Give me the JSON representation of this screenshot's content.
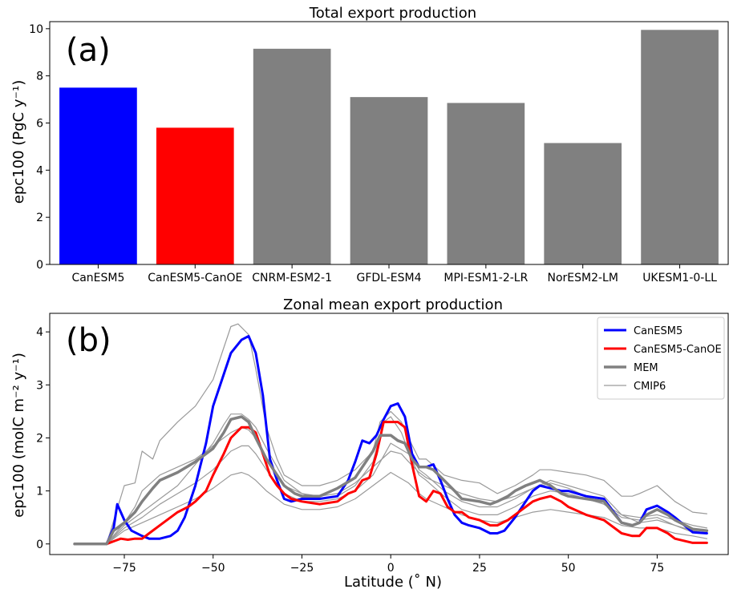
{
  "chart_data": [
    {
      "panel": "(a)",
      "type": "bar",
      "title": "Total export production",
      "ylabel": "epc100 (PgC y⁻¹)",
      "ylim": [
        0,
        10.3
      ],
      "yticks": [
        0,
        2,
        4,
        6,
        8,
        10
      ],
      "categories": [
        "CanESM5",
        "CanESM5-CanOE",
        "CNRM-ESM2-1",
        "GFDL-ESM4",
        "MPI-ESM1-2-LR",
        "NorESM2-LM",
        "UKESM1-0-LL"
      ],
      "values": [
        7.5,
        5.8,
        9.15,
        7.1,
        6.85,
        5.15,
        9.95
      ],
      "colors": [
        "#0000ff",
        "#ff0000",
        "#808080",
        "#808080",
        "#808080",
        "#808080",
        "#808080"
      ]
    },
    {
      "panel": "(b)",
      "type": "line",
      "title": "Zonal mean export production",
      "xlabel": "Latitude (˚ N)",
      "ylabel": "epc100 (molC m⁻² y⁻¹)",
      "xlim": [
        -96,
        95
      ],
      "ylim": [
        -0.2,
        4.35
      ],
      "xticks": [
        -75,
        -50,
        -25,
        0,
        25,
        50,
        75
      ],
      "xticklabels": [
        "−75",
        "−50",
        "−25",
        "0",
        "25",
        "50",
        "75"
      ],
      "yticks": [
        0,
        1,
        2,
        3,
        4
      ],
      "legend_position": "top-right",
      "series": [
        {
          "name": "CanESM5",
          "color": "#0000ff",
          "width": 3,
          "x": [
            -89,
            -85,
            -80,
            -78,
            -77,
            -75,
            -73,
            -70,
            -68,
            -65,
            -62,
            -60,
            -58,
            -55,
            -52,
            -50,
            -47,
            -45,
            -42,
            -40,
            -38,
            -36,
            -34,
            -32,
            -30,
            -28,
            -25,
            -20,
            -15,
            -12,
            -10,
            -8,
            -6,
            -4,
            -2,
            0,
            2,
            4,
            6,
            8,
            10,
            12,
            14,
            16,
            18,
            20,
            22,
            25,
            28,
            30,
            32,
            35,
            38,
            40,
            42,
            45,
            48,
            50,
            55,
            60,
            65,
            68,
            70,
            72,
            75,
            78,
            80,
            85,
            89
          ],
          "y": [
            0,
            0,
            0,
            0.3,
            0.75,
            0.45,
            0.25,
            0.15,
            0.1,
            0.1,
            0.15,
            0.25,
            0.5,
            1.1,
            1.9,
            2.6,
            3.2,
            3.6,
            3.85,
            3.92,
            3.6,
            2.8,
            1.6,
            1.2,
            0.85,
            0.8,
            0.85,
            0.85,
            0.9,
            1.2,
            1.55,
            1.95,
            1.9,
            2.05,
            2.35,
            2.6,
            2.65,
            2.4,
            1.7,
            1.45,
            1.45,
            1.5,
            1.2,
            0.85,
            0.55,
            0.4,
            0.35,
            0.3,
            0.2,
            0.2,
            0.25,
            0.5,
            0.8,
            1.0,
            1.1,
            1.05,
            1.0,
            1.0,
            0.9,
            0.85,
            0.4,
            0.35,
            0.4,
            0.65,
            0.72,
            0.6,
            0.5,
            0.22,
            0.2
          ]
        },
        {
          "name": "CanESM5-CanOE",
          "color": "#ff0000",
          "width": 3,
          "x": [
            -89,
            -85,
            -80,
            -78,
            -76,
            -74,
            -72,
            -70,
            -68,
            -65,
            -62,
            -60,
            -57,
            -55,
            -52,
            -50,
            -47,
            -45,
            -42,
            -40,
            -38,
            -36,
            -34,
            -32,
            -30,
            -28,
            -25,
            -20,
            -15,
            -12,
            -10,
            -8,
            -6,
            -4,
            -2,
            0,
            2,
            4,
            6,
            8,
            10,
            12,
            14,
            16,
            18,
            20,
            22,
            25,
            28,
            30,
            33,
            35,
            38,
            40,
            42,
            45,
            48,
            50,
            55,
            60,
            65,
            68,
            70,
            72,
            75,
            78,
            80,
            85,
            89
          ],
          "y": [
            0,
            0,
            0,
            0.05,
            0.1,
            0.08,
            0.1,
            0.1,
            0.2,
            0.35,
            0.5,
            0.6,
            0.7,
            0.8,
            1.0,
            1.3,
            1.7,
            2.0,
            2.2,
            2.2,
            2.1,
            1.7,
            1.3,
            1.1,
            0.95,
            0.85,
            0.8,
            0.75,
            0.8,
            0.95,
            1.0,
            1.2,
            1.25,
            1.7,
            2.3,
            2.3,
            2.3,
            2.2,
            1.5,
            0.9,
            0.8,
            1.0,
            0.95,
            0.7,
            0.6,
            0.6,
            0.5,
            0.45,
            0.35,
            0.35,
            0.45,
            0.55,
            0.7,
            0.8,
            0.85,
            0.9,
            0.8,
            0.7,
            0.55,
            0.45,
            0.2,
            0.15,
            0.15,
            0.3,
            0.3,
            0.2,
            0.1,
            0.02,
            0.02
          ]
        },
        {
          "name": "MEM",
          "color": "#808080",
          "width": 3.5,
          "x": [
            -89,
            -85,
            -80,
            -78,
            -75,
            -72,
            -70,
            -67,
            -65,
            -60,
            -55,
            -50,
            -47,
            -45,
            -42,
            -40,
            -38,
            -35,
            -32,
            -30,
            -27,
            -25,
            -20,
            -15,
            -10,
            -8,
            -5,
            -3,
            0,
            2,
            4,
            6,
            8,
            10,
            12,
            15,
            18,
            20,
            25,
            28,
            30,
            33,
            35,
            38,
            40,
            42,
            45,
            48,
            50,
            55,
            60,
            65,
            68,
            70,
            72,
            75,
            78,
            80,
            85,
            89
          ],
          "y": [
            0,
            0,
            0,
            0.25,
            0.4,
            0.6,
            0.8,
            1.05,
            1.2,
            1.35,
            1.55,
            1.8,
            2.1,
            2.35,
            2.4,
            2.3,
            2.0,
            1.6,
            1.3,
            1.1,
            0.95,
            0.9,
            0.9,
            1.05,
            1.25,
            1.45,
            1.75,
            2.05,
            2.05,
            1.95,
            1.9,
            1.6,
            1.45,
            1.45,
            1.4,
            1.2,
            1.0,
            0.85,
            0.8,
            0.75,
            0.8,
            0.9,
            1.0,
            1.1,
            1.15,
            1.2,
            1.1,
            0.95,
            0.9,
            0.85,
            0.8,
            0.4,
            0.35,
            0.4,
            0.55,
            0.65,
            0.55,
            0.45,
            0.28,
            0.25
          ]
        },
        {
          "name": "CMIP6",
          "color": "#9a9a9a",
          "width": 1.2,
          "x": [
            -89,
            -85,
            -80,
            -75,
            -72,
            -70,
            -67,
            -65,
            -60,
            -55,
            -50,
            -47,
            -45,
            -43,
            -40,
            -38,
            -35,
            -32,
            -30,
            -25,
            -20,
            -15,
            -10,
            -5,
            -3,
            0,
            3,
            5,
            8,
            10,
            15,
            20,
            25,
            30,
            35,
            40,
            42,
            45,
            50,
            55,
            60,
            65,
            68,
            70,
            75,
            80,
            85,
            89
          ],
          "y": [
            0,
            0,
            0,
            1.1,
            1.15,
            1.75,
            1.6,
            1.95,
            2.3,
            2.6,
            3.1,
            3.7,
            4.1,
            4.15,
            3.95,
            3.3,
            2.2,
            1.6,
            1.3,
            1.1,
            1.1,
            1.2,
            1.4,
            1.75,
            2.3,
            2.5,
            2.3,
            2.0,
            1.6,
            1.6,
            1.3,
            1.2,
            1.15,
            0.95,
            1.1,
            1.3,
            1.4,
            1.4,
            1.35,
            1.3,
            1.2,
            0.9,
            0.9,
            0.95,
            1.1,
            0.8,
            0.6,
            0.57
          ]
        },
        {
          "name": "",
          "color": "#9a9a9a",
          "width": 1.2,
          "x": [
            -89,
            -85,
            -80,
            -75,
            -70,
            -65,
            -60,
            -55,
            -50,
            -45,
            -42,
            -40,
            -38,
            -35,
            -32,
            -30,
            -25,
            -20,
            -15,
            -10,
            -5,
            0,
            5,
            8,
            10,
            15,
            20,
            25,
            30,
            35,
            40,
            45,
            50,
            55,
            60,
            65,
            70,
            75,
            80,
            85,
            89
          ],
          "y": [
            0,
            0,
            0,
            0.3,
            0.5,
            0.75,
            0.95,
            1.15,
            1.4,
            1.75,
            1.85,
            1.85,
            1.7,
            1.4,
            1.1,
            0.95,
            0.8,
            0.8,
            0.85,
            1.0,
            1.3,
            1.9,
            1.7,
            1.3,
            1.2,
            0.9,
            0.65,
            0.55,
            0.55,
            0.7,
            0.9,
            1.0,
            0.95,
            0.85,
            0.75,
            0.55,
            0.5,
            0.55,
            0.45,
            0.35,
            0.3
          ]
        },
        {
          "name": "",
          "color": "#9a9a9a",
          "width": 1.2,
          "x": [
            -89,
            -85,
            -80,
            -75,
            -70,
            -65,
            -60,
            -55,
            -50,
            -45,
            -42,
            -40,
            -38,
            -35,
            -32,
            -30,
            -25,
            -20,
            -15,
            -10,
            -5,
            0,
            5,
            8,
            10,
            15,
            20,
            25,
            30,
            35,
            40,
            45,
            50,
            55,
            60,
            65,
            70,
            75,
            80,
            85,
            89
          ],
          "y": [
            0,
            0,
            0,
            0.25,
            0.4,
            0.55,
            0.7,
            0.85,
            1.05,
            1.3,
            1.35,
            1.3,
            1.2,
            1.0,
            0.85,
            0.75,
            0.65,
            0.65,
            0.7,
            0.85,
            1.1,
            1.35,
            1.15,
            0.95,
            0.85,
            0.7,
            0.55,
            0.45,
            0.4,
            0.5,
            0.6,
            0.65,
            0.6,
            0.55,
            0.5,
            0.35,
            0.3,
            0.3,
            0.2,
            0.15,
            0.1
          ]
        },
        {
          "name": "",
          "color": "#9a9a9a",
          "width": 1.2,
          "x": [
            -89,
            -85,
            -80,
            -75,
            -70,
            -65,
            -60,
            -55,
            -50,
            -47,
            -45,
            -42,
            -40,
            -38,
            -35,
            -32,
            -30,
            -25,
            -20,
            -15,
            -10,
            -5,
            -2,
            0,
            3,
            5,
            8,
            10,
            15,
            20,
            25,
            30,
            35,
            40,
            45,
            50,
            55,
            60,
            65,
            70,
            75,
            80,
            85,
            89
          ],
          "y": [
            0,
            0,
            0,
            0.35,
            0.6,
            0.85,
            1.1,
            1.5,
            1.9,
            2.25,
            2.45,
            2.45,
            2.35,
            2.2,
            1.8,
            1.45,
            1.2,
            0.95,
            0.85,
            0.9,
            1.1,
            1.55,
            2.3,
            2.4,
            2.1,
            1.75,
            1.4,
            1.3,
            1.0,
            0.8,
            0.7,
            0.7,
            0.85,
            1.05,
            1.15,
            1.05,
            0.9,
            0.75,
            0.5,
            0.45,
            0.5,
            0.35,
            0.25,
            0.2
          ]
        },
        {
          "name": "",
          "color": "#9a9a9a",
          "width": 1.2,
          "x": [
            -89,
            -85,
            -80,
            -75,
            -72,
            -70,
            -65,
            -60,
            -55,
            -50,
            -45,
            -42,
            -40,
            -38,
            -35,
            -32,
            -30,
            -25,
            -20,
            -15,
            -10,
            -5,
            0,
            3,
            5,
            8,
            10,
            15,
            20,
            25,
            30,
            35,
            40,
            45,
            50,
            55,
            60,
            65,
            70,
            75,
            80,
            85,
            89
          ],
          "y": [
            0,
            0,
            0,
            0.4,
            0.7,
            1.0,
            1.3,
            1.45,
            1.6,
            1.85,
            2.1,
            2.2,
            2.15,
            2.0,
            1.6,
            1.3,
            1.1,
            0.95,
            0.9,
            0.95,
            1.15,
            1.45,
            1.75,
            1.7,
            1.55,
            1.35,
            1.25,
            1.1,
            0.95,
            0.85,
            0.8,
            0.9,
            1.05,
            1.2,
            1.1,
            1.0,
            0.9,
            0.55,
            0.4,
            0.45,
            0.35,
            0.22,
            0.2
          ]
        }
      ]
    }
  ]
}
